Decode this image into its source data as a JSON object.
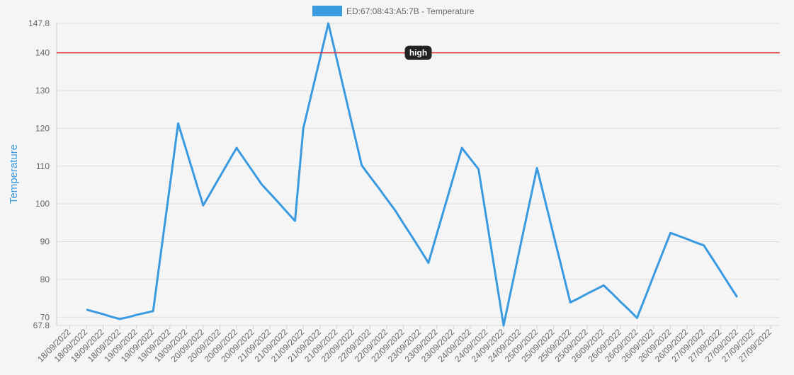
{
  "chart_data": {
    "type": "line",
    "legend": "ED:67:08:43:A5:7B - Temperature",
    "y_label": "Temperature",
    "categories": [
      "18/09/2022",
      null,
      "18/09/2022",
      null,
      "18/09/2022",
      null,
      "18/09/2022",
      null,
      "19/09/2022",
      null,
      "19/09/2022",
      null,
      "19/09/2022",
      null,
      "19/09/2022",
      null,
      "20/09/2022",
      null,
      "20/09/2022",
      null,
      "20/09/2022",
      null,
      "20/09/2022",
      null,
      "21/09/2022",
      null,
      "21/09/2022",
      null,
      "21/09/2022",
      null,
      "21/09/2022",
      null,
      "21/09/2022",
      null,
      "22/09/2022",
      null,
      "22/09/2022",
      null,
      "22/09/2022",
      null,
      "22/09/2022",
      null,
      "23/09/2022",
      null,
      "23/09/2022",
      null,
      "23/09/2022",
      null,
      "24/09/2022",
      null,
      "24/09/2022",
      null,
      "24/09/2022",
      null,
      "24/09/2022",
      null,
      "25/09/2022",
      null,
      "25/09/2022",
      null,
      "25/09/2022",
      null,
      "25/09/2022",
      null,
      "26/09/2022",
      null,
      "26/09/2022",
      null,
      "26/09/2022",
      null,
      "26/09/2022",
      null,
      "26/09/2022",
      null,
      "26/09/2022",
      null,
      "27/09/2022",
      null,
      "27/09/2022",
      null,
      "27/09/2022",
      null,
      "27/09/2022",
      null,
      "27/09/2022"
    ],
    "series": [
      {
        "name": "ED:67:08:43:A5:7B - Temperature",
        "color": "#3a9ae0",
        "values": [
          null,
          null,
          72.0,
          71.4,
          70.8,
          70.1,
          69.5,
          70.0,
          70.6,
          71.1,
          71.6,
          88.2,
          104.7,
          121.3,
          114.1,
          106.8,
          99.6,
          103.4,
          107.2,
          111.0,
          114.8,
          111.6,
          108.4,
          105.2,
          102.8,
          100.4,
          97.9,
          95.5,
          120.0,
          129.3,
          138.5,
          147.8,
          138.4,
          129.0,
          119.6,
          110.2,
          107.2,
          104.3,
          101.3,
          98.3,
          94.8,
          91.4,
          87.9,
          84.4,
          92.0,
          99.6,
          107.2,
          114.8,
          112.0,
          109.2,
          95.4,
          81.6,
          67.8,
          78.2,
          88.7,
          99.1,
          109.5,
          100.6,
          91.7,
          82.8,
          73.9,
          75.0,
          76.2,
          77.3,
          78.4,
          76.3,
          74.1,
          72.0,
          69.8,
          75.4,
          81.1,
          86.7,
          92.3,
          91.5,
          90.7,
          89.8,
          89.0,
          85.6,
          82.2,
          78.7,
          75.3,
          null,
          null,
          null,
          null
        ]
      }
    ],
    "ylim": [
      67.8,
      147.8
    ],
    "yticks": [
      67.8,
      70,
      80,
      90,
      100,
      110,
      120,
      130,
      140,
      147.8
    ],
    "grid": true,
    "annotations": [
      {
        "value": 140,
        "label": "high",
        "color": "#e03030"
      }
    ]
  }
}
